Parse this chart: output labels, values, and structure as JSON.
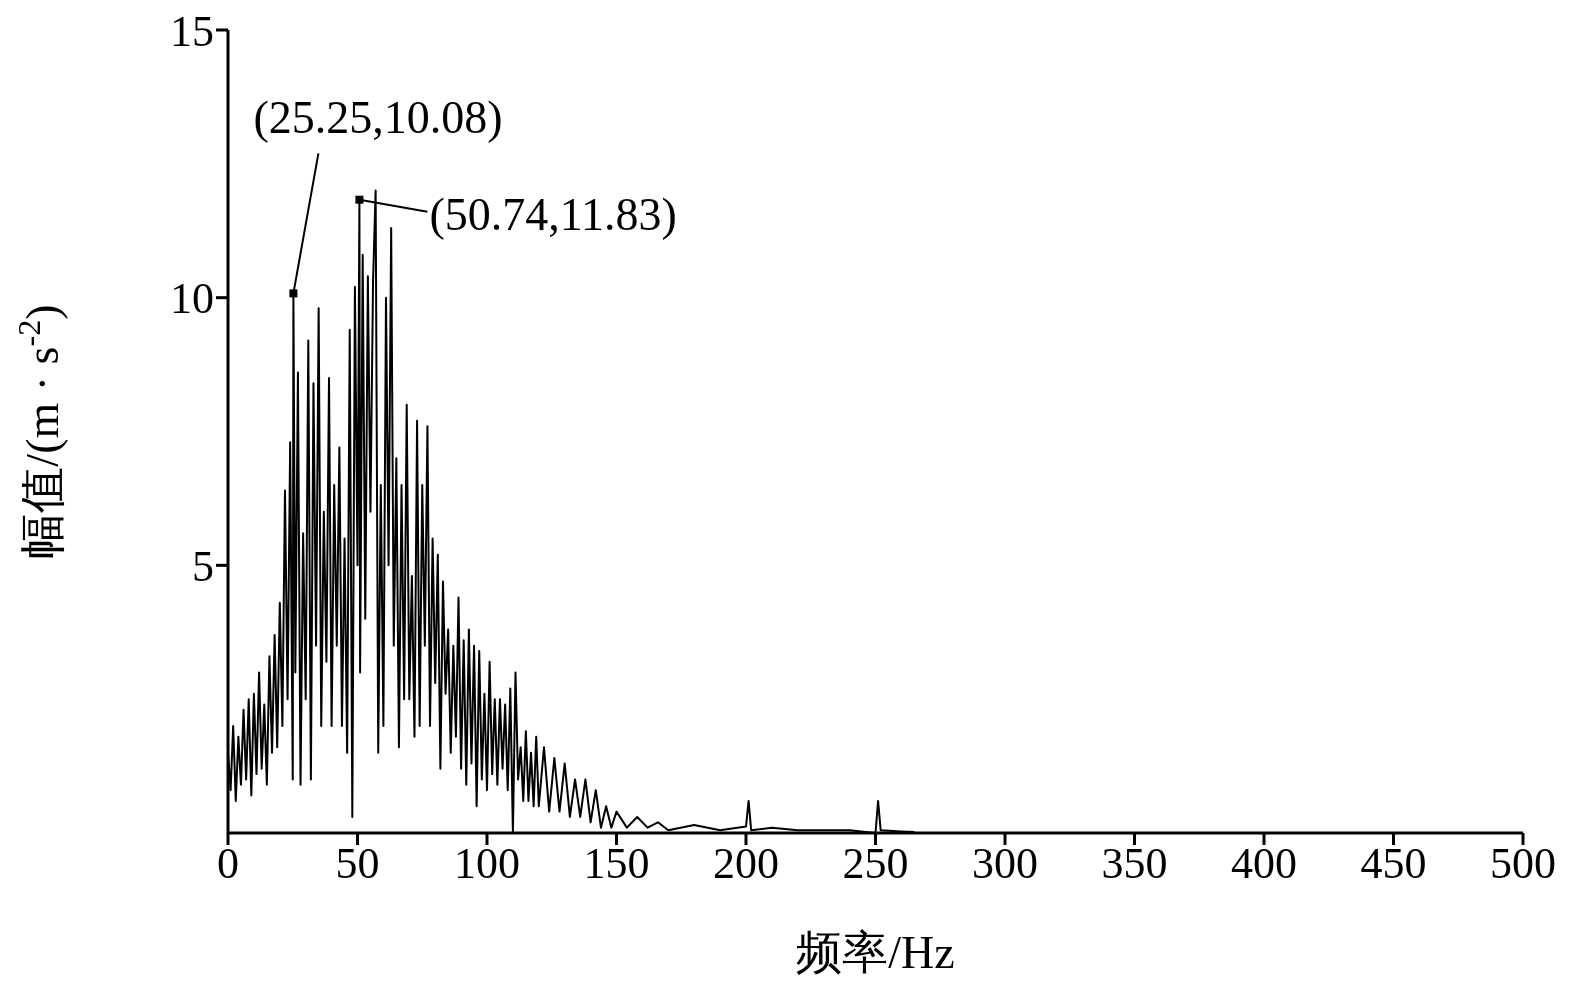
{
  "chart_data": {
    "type": "line",
    "xlabel": "频率/Hz",
    "ylabel": "幅值/(m · s$^{-2}$)",
    "xlim": [
      0,
      500
    ],
    "xticks": [
      0,
      50,
      100,
      150,
      200,
      250,
      300,
      350,
      400,
      450,
      500
    ],
    "ylim": [
      0,
      15
    ],
    "yticks": [
      5,
      10,
      15
    ],
    "grid": false,
    "marker": "none",
    "line_style": "solid",
    "series": [
      {
        "color": "#000000",
        "x": [
          0,
          1,
          2,
          3,
          4,
          5,
          6,
          7,
          8,
          9,
          10,
          11,
          12,
          13,
          14,
          15,
          16,
          17,
          18,
          19,
          20,
          21,
          22,
          23,
          24,
          25,
          25.25,
          26,
          27,
          28,
          29,
          30,
          31,
          32,
          33,
          34,
          35,
          36,
          37,
          38,
          39,
          40,
          41,
          42,
          43,
          44,
          45,
          46,
          47,
          48,
          49,
          50,
          50.74,
          51,
          52,
          53,
          54,
          55,
          56,
          57,
          58,
          59,
          60,
          61,
          62,
          63,
          64,
          65,
          66,
          67,
          68,
          69,
          70,
          71,
          72,
          73,
          74,
          75,
          76,
          77,
          78,
          79,
          80,
          81,
          82,
          83,
          84,
          85,
          86,
          87,
          88,
          89,
          90,
          91,
          92,
          93,
          94,
          95,
          96,
          97,
          98,
          99,
          100,
          101,
          102,
          103,
          104,
          105,
          106,
          107,
          108,
          109,
          110,
          111,
          112,
          113,
          114,
          115,
          116,
          117,
          118,
          119,
          120,
          122,
          124,
          126,
          128,
          130,
          132,
          134,
          136,
          138,
          140,
          142,
          144,
          146,
          148,
          150,
          154,
          158,
          162,
          166,
          170,
          180,
          190,
          200,
          201,
          202,
          210,
          220,
          240,
          250,
          251,
          252,
          260,
          265
        ],
        "values": [
          1.5,
          0.8,
          2.0,
          0.6,
          1.8,
          0.9,
          2.3,
          1.0,
          2.5,
          0.7,
          2.6,
          1.1,
          3.0,
          1.2,
          2.4,
          0.9,
          3.3,
          1.5,
          3.7,
          1.6,
          4.3,
          2.0,
          6.4,
          2.5,
          7.3,
          1.0,
          10.08,
          3.0,
          8.6,
          0.9,
          5.6,
          2.5,
          9.2,
          1.0,
          8.4,
          3.5,
          9.8,
          2.0,
          6.0,
          3.2,
          8.5,
          2.0,
          6.5,
          3.5,
          7.2,
          2.0,
          5.5,
          1.5,
          9.4,
          0.3,
          10.2,
          5.0,
          11.83,
          3.0,
          10.8,
          4.0,
          10.4,
          6.0,
          10.3,
          12.0,
          1.5,
          6.5,
          2.0,
          10.0,
          5.0,
          11.3,
          3.5,
          7.0,
          1.6,
          6.5,
          2.5,
          8.0,
          2.5,
          4.8,
          1.8,
          7.7,
          2.0,
          6.5,
          3.5,
          7.6,
          2.0,
          5.5,
          2.8,
          5.2,
          1.2,
          4.7,
          2.6,
          3.8,
          1.5,
          3.5,
          1.8,
          4.4,
          1.2,
          3.6,
          0.9,
          3.8,
          1.3,
          3.5,
          0.5,
          3.4,
          1.0,
          2.6,
          0.8,
          3.2,
          1.1,
          2.5,
          0.9,
          2.5,
          1.2,
          2.4,
          0.8,
          2.7,
          0.0,
          3.0,
          1.0,
          1.6,
          0.6,
          1.9,
          0.6,
          1.5,
          0.5,
          1.8,
          0.5,
          1.6,
          0.4,
          1.4,
          0.4,
          1.3,
          0.3,
          1.0,
          0.3,
          1.0,
          0.2,
          0.8,
          0.1,
          0.5,
          0.1,
          0.4,
          0.1,
          0.3,
          0.1,
          0.2,
          0.05,
          0.15,
          0.05,
          0.12,
          0.6,
          0.05,
          0.1,
          0.05,
          0.05,
          0.0,
          0.6,
          0.05,
          0.03,
          0.02
        ]
      },
      {
        "type": "scatter",
        "color": "#000000",
        "marker": "square",
        "x": [
          25.25,
          50.74
        ],
        "values": [
          10.08,
          11.83
        ]
      }
    ],
    "annotations": [
      {
        "text": "(25.25,10.08)",
        "x": 25.25,
        "y": 10.08
      },
      {
        "text": "(50.74,11.83)",
        "x": 50.74,
        "y": 11.83
      }
    ]
  }
}
